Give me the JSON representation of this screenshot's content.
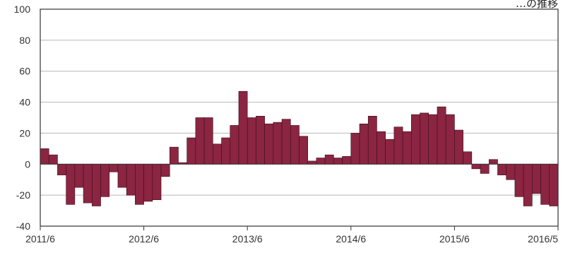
{
  "chart_data": {
    "type": "bar",
    "title": "…の推移",
    "ylim": [
      -40,
      100
    ],
    "y_ticks": [
      "100",
      "80",
      "60",
      "40",
      "20",
      "0",
      "-20",
      "-40"
    ],
    "x_ticks": [
      "2011/6",
      "2012/6",
      "2013/6",
      "2014/6",
      "2015/6",
      "2016/5"
    ],
    "grid": true,
    "start_month": "2011/6",
    "values": [
      10,
      6,
      -7,
      -26,
      -15,
      -25,
      -27,
      -21,
      -5,
      -15,
      -20,
      -26,
      -24,
      -23,
      -8,
      11,
      1,
      17,
      30,
      30,
      13,
      17,
      25,
      47,
      30,
      31,
      26,
      27,
      29,
      25,
      18,
      2,
      4,
      6,
      4,
      5,
      20,
      26,
      31,
      21,
      16,
      24,
      21,
      32,
      33,
      32,
      37,
      32,
      22,
      8,
      -3,
      -6,
      3,
      -7,
      -10,
      -21,
      -27,
      -19,
      -26,
      -27
    ],
    "bar_color": "#8b2542",
    "bar_edge": "#3a0f1a",
    "grid_color": "#b8b8b8",
    "axis_color": "#333333"
  }
}
